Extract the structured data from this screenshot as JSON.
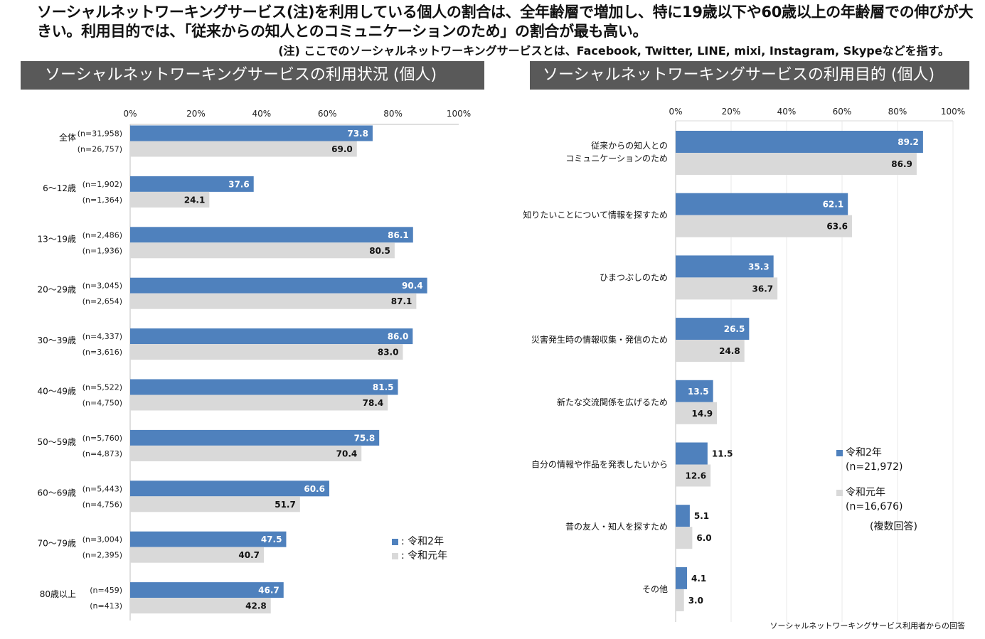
{
  "headline": "ソーシャルネットワーキングサービス(注)を利用している個人の割合は、全年齢層で増加し、特に19歳以下や60歳以上の年齢層での伸びが大きい。利用目的では、「従来からの知人とのコミュニケーションのため」の割合が最も高い。",
  "note": "(注) ここでのソーシャルネットワーキングサービスとは、Facebook, Twitter, LINE, mixi, Instagram, Skypeなどを指す。",
  "left_header": "ソーシャルネットワーキングサービスの利用状況 (個人)",
  "right_header": "ソーシャルネットワーキングサービスの利用目的 (個人)",
  "legend_left": {
    "r2": ": 令和2年",
    "r1": ": 令和元年"
  },
  "legend_right": {
    "r2": "令和2年",
    "r2_n": "(n=21,972)",
    "r1": "令和元年",
    "r1_n": "(n=16,676)",
    "multi": "(複数回答)"
  },
  "footnote": "ソーシャルネットワーキングサービス利用者からの回答",
  "colors": {
    "r2": "#4f81bd",
    "r1": "#d9d9d9",
    "header_bg": "#595959"
  },
  "chart_data": [
    {
      "type": "bar",
      "orientation": "horizontal",
      "ticks": [
        "0%",
        "20%",
        "40%",
        "60%",
        "80%",
        "100%"
      ],
      "xlim": [
        0,
        100
      ],
      "categories": [
        "全体",
        "6～12歳",
        "13～19歳",
        "20～29歳",
        "30～39歳",
        "40～49歳",
        "50～59歳",
        "60～69歳",
        "70～79歳",
        "80歳以上"
      ],
      "n_r2": [
        "(n=31,958)",
        "(n=1,902)",
        "(n=2,486)",
        "(n=3,045)",
        "(n=4,337)",
        "(n=5,522)",
        "(n=5,760)",
        "(n=5,443)",
        "(n=3,004)",
        "(n=459)"
      ],
      "n_r1": [
        "(n=26,757)",
        "(n=1,364)",
        "(n=1,936)",
        "(n=2,654)",
        "(n=3,616)",
        "(n=4,750)",
        "(n=4,873)",
        "(n=4,756)",
        "(n=2,395)",
        "(n=413)"
      ],
      "series": [
        {
          "name": "令和2年",
          "values": [
            73.8,
            37.6,
            86.1,
            90.4,
            86.0,
            81.5,
            75.8,
            60.6,
            47.5,
            46.7
          ]
        },
        {
          "name": "令和元年",
          "values": [
            69.0,
            24.1,
            80.5,
            87.1,
            83.0,
            78.4,
            70.4,
            51.7,
            40.7,
            42.8
          ]
        }
      ]
    },
    {
      "type": "bar",
      "orientation": "horizontal",
      "ticks": [
        "0%",
        "20%",
        "40%",
        "60%",
        "80%",
        "100%"
      ],
      "xlim": [
        0,
        100
      ],
      "categories": [
        [
          "従来からの知人との",
          "コミュニケーションのため"
        ],
        [
          "知りたいことについて情報を探すため"
        ],
        [
          "ひまつぶしのため"
        ],
        [
          "災害発生時の情報収集・発信のため"
        ],
        [
          "新たな交流関係を広げるため"
        ],
        [
          "自分の情報や作品を発表したいから"
        ],
        [
          "昔の友人・知人を探すため"
        ],
        [
          "その他"
        ]
      ],
      "series": [
        {
          "name": "令和2年",
          "values": [
            89.2,
            62.1,
            35.3,
            26.5,
            13.5,
            11.5,
            5.1,
            4.1
          ]
        },
        {
          "name": "令和元年",
          "values": [
            86.9,
            63.6,
            36.7,
            24.8,
            14.9,
            12.6,
            6.0,
            3.0
          ]
        }
      ]
    }
  ]
}
